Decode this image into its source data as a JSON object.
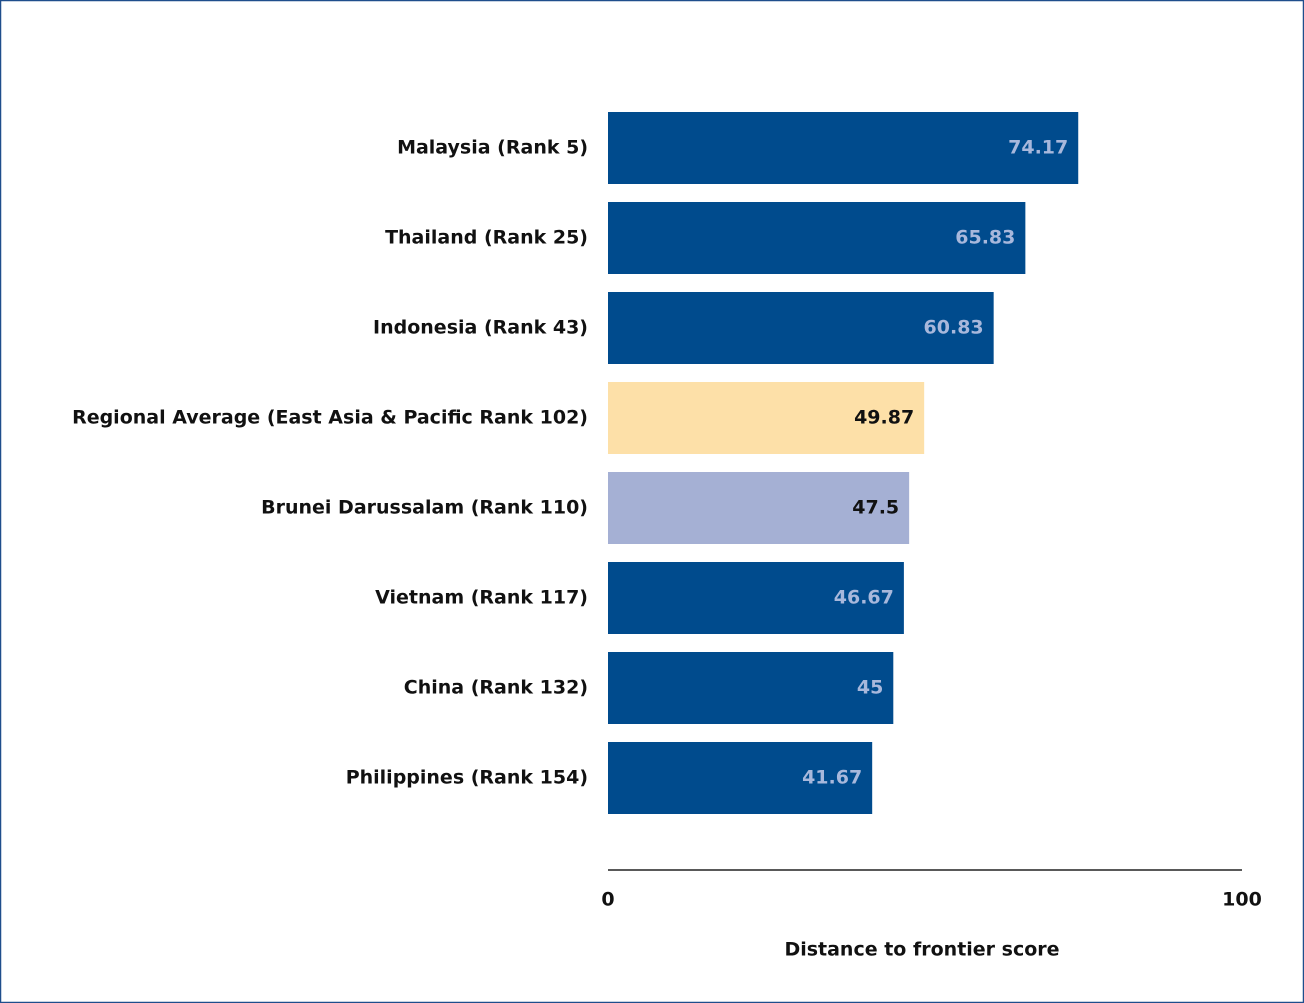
{
  "chart_data": {
    "type": "barh",
    "categories": [
      "Malaysia (Rank 5)",
      "Thailand (Rank 25)",
      "Indonesia (Rank 43)",
      "Regional Average (East Asia & Pacific Rank 102)",
      "Brunei Darussalam (Rank 110)",
      "Vietnam (Rank 117)",
      "China (Rank 132)",
      "Philippines (Rank 154)"
    ],
    "values": [
      74.17,
      65.83,
      60.83,
      49.87,
      47.5,
      46.67,
      45,
      41.67
    ],
    "colors": [
      "#004b8d",
      "#004b8d",
      "#004b8d",
      "#fde0a8",
      "#a5b0d4",
      "#004b8d",
      "#004b8d",
      "#004b8d"
    ],
    "value_label_colors": [
      "#a8b8dc",
      "#a8b8dc",
      "#a8b8dc",
      "#111111",
      "#111111",
      "#a8b8dc",
      "#a8b8dc",
      "#a8b8dc"
    ],
    "xlabel": "Distance to frontier score",
    "xlim": [
      0,
      100
    ],
    "xticks": [
      0,
      100
    ],
    "grid": false
  }
}
